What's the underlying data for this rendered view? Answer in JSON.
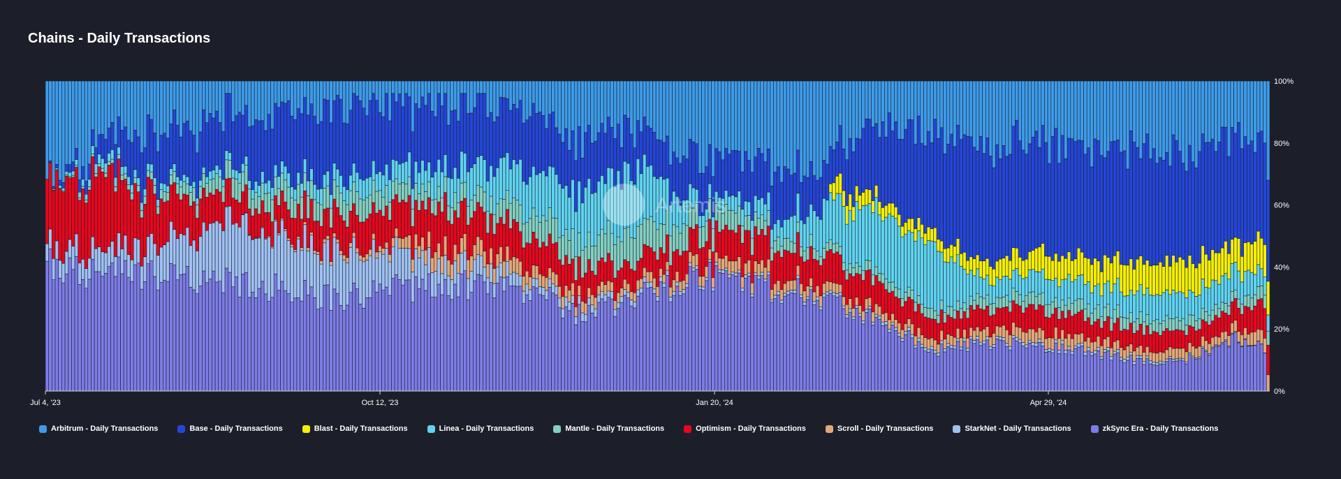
{
  "title": "Chains - Daily Transactions",
  "watermark": "Artemis",
  "colors": {
    "background": "#1c1f2a",
    "Arbitrum": "#3d9be9",
    "Base": "#2446d8",
    "Blast": "#f5ef00",
    "Linea": "#5fd3f0",
    "Mantle": "#83cfc0",
    "Optimism": "#e8071c",
    "Scroll": "#e3a878",
    "StarkNet": "#9fc1f2",
    "zkSync Era": "#7d7ce6"
  },
  "chart_data": {
    "type": "bar",
    "stacked": "percent",
    "title": "Chains - Daily Transactions",
    "x_range": [
      "2023-07-04",
      "2024-07-12"
    ],
    "x_ticks": [
      "Jul 4, '23",
      "Oct 12, '23",
      "Jan 20, '24",
      "Apr 29, '24"
    ],
    "y_ticks": [
      "0%",
      "20%",
      "40%",
      "60%",
      "80%",
      "100%"
    ],
    "ylim": [
      0,
      100
    ],
    "y_axis_side": "right",
    "legend_position": "bottom",
    "note": "Approximate key points of each series' share (%) of daily transactions; dates are ISO, shares are read from the stacked 100% chart",
    "series": [
      {
        "name": "zkSync Era - Daily Transactions",
        "color_key": "zkSync Era",
        "points": [
          [
            "2023-07-04",
            40
          ],
          [
            "2023-08-01",
            37
          ],
          [
            "2023-09-01",
            35
          ],
          [
            "2023-10-01",
            30
          ],
          [
            "2023-11-01",
            35
          ],
          [
            "2023-12-01",
            32
          ],
          [
            "2023-12-15",
            24
          ],
          [
            "2024-01-01",
            30
          ],
          [
            "2024-01-20",
            37
          ],
          [
            "2024-02-15",
            33
          ],
          [
            "2024-03-01",
            28
          ],
          [
            "2024-03-15",
            22
          ],
          [
            "2024-04-01",
            13
          ],
          [
            "2024-04-15",
            15
          ],
          [
            "2024-05-01",
            15
          ],
          [
            "2024-05-15",
            13
          ],
          [
            "2024-06-01",
            10
          ],
          [
            "2024-06-15",
            9
          ],
          [
            "2024-07-01",
            17
          ],
          [
            "2024-07-11",
            14
          ],
          [
            "2024-07-12",
            0
          ]
        ]
      },
      {
        "name": "StarkNet - Daily Transactions",
        "color_key": "StarkNet",
        "points": [
          [
            "2023-07-04",
            6
          ],
          [
            "2023-08-01",
            8
          ],
          [
            "2023-09-01",
            20
          ],
          [
            "2023-10-01",
            15
          ],
          [
            "2023-11-01",
            8
          ],
          [
            "2023-12-01",
            3
          ],
          [
            "2024-01-01",
            2
          ],
          [
            "2024-01-20",
            1
          ],
          [
            "2024-02-15",
            1
          ],
          [
            "2024-03-15",
            1
          ],
          [
            "2024-04-01",
            1
          ],
          [
            "2024-05-01",
            1
          ],
          [
            "2024-06-01",
            1
          ],
          [
            "2024-07-12",
            0
          ]
        ]
      },
      {
        "name": "Scroll - Daily Transactions",
        "color_key": "Scroll",
        "points": [
          [
            "2023-07-04",
            0
          ],
          [
            "2023-09-01",
            0
          ],
          [
            "2023-10-15",
            2
          ],
          [
            "2023-11-01",
            6
          ],
          [
            "2023-12-01",
            4
          ],
          [
            "2024-01-01",
            3
          ],
          [
            "2024-02-01",
            4
          ],
          [
            "2024-03-01",
            3
          ],
          [
            "2024-04-01",
            3
          ],
          [
            "2024-05-01",
            4
          ],
          [
            "2024-06-01",
            3
          ],
          [
            "2024-07-01",
            3
          ],
          [
            "2024-07-12",
            5
          ]
        ]
      },
      {
        "name": "Optimism - Daily Transactions",
        "color_key": "Optimism",
        "points": [
          [
            "2023-07-04",
            20
          ],
          [
            "2023-07-20",
            25
          ],
          [
            "2023-08-01",
            18
          ],
          [
            "2023-08-15",
            12
          ],
          [
            "2023-09-01",
            8
          ],
          [
            "2023-10-01",
            10
          ],
          [
            "2023-11-01",
            13
          ],
          [
            "2023-12-01",
            10
          ],
          [
            "2024-01-01",
            7
          ],
          [
            "2024-01-20",
            9
          ],
          [
            "2024-02-15",
            10
          ],
          [
            "2024-03-01",
            9
          ],
          [
            "2024-03-15",
            9
          ],
          [
            "2024-04-01",
            6
          ],
          [
            "2024-05-01",
            7
          ],
          [
            "2024-06-01",
            6
          ],
          [
            "2024-07-01",
            6
          ],
          [
            "2024-07-12",
            10
          ]
        ]
      },
      {
        "name": "Mantle - Daily Transactions",
        "color_key": "Mantle",
        "points": [
          [
            "2023-07-04",
            0
          ],
          [
            "2023-08-01",
            2
          ],
          [
            "2023-09-01",
            6
          ],
          [
            "2023-10-01",
            7
          ],
          [
            "2023-11-01",
            5
          ],
          [
            "2023-12-01",
            8
          ],
          [
            "2024-01-01",
            10
          ],
          [
            "2024-01-20",
            7
          ],
          [
            "2024-02-15",
            4
          ],
          [
            "2024-03-01",
            3
          ],
          [
            "2024-04-01",
            3
          ],
          [
            "2024-05-01",
            4
          ],
          [
            "2024-06-01",
            4
          ],
          [
            "2024-07-01",
            3
          ],
          [
            "2024-07-12",
            4
          ]
        ]
      },
      {
        "name": "Linea - Daily Transactions",
        "color_key": "Linea",
        "points": [
          [
            "2023-07-04",
            0
          ],
          [
            "2023-07-20",
            3
          ],
          [
            "2023-08-15",
            2
          ],
          [
            "2023-09-01",
            3
          ],
          [
            "2023-10-01",
            5
          ],
          [
            "2023-11-01",
            8
          ],
          [
            "2023-12-01",
            14
          ],
          [
            "2024-01-01",
            20
          ],
          [
            "2024-01-20",
            4
          ],
          [
            "2024-02-15",
            6
          ],
          [
            "2024-03-01",
            16
          ],
          [
            "2024-03-15",
            20
          ],
          [
            "2024-04-01",
            20
          ],
          [
            "2024-04-15",
            6
          ],
          [
            "2024-05-01",
            7
          ],
          [
            "2024-06-01",
            8
          ],
          [
            "2024-07-01",
            9
          ],
          [
            "2024-07-12",
            6
          ]
        ]
      },
      {
        "name": "Blast - Daily Transactions",
        "color_key": "Blast",
        "points": [
          [
            "2023-07-04",
            0
          ],
          [
            "2024-02-28",
            0
          ],
          [
            "2024-03-01",
            6
          ],
          [
            "2024-03-15",
            4
          ],
          [
            "2024-04-01",
            4
          ],
          [
            "2024-05-01",
            7
          ],
          [
            "2024-06-01",
            9
          ],
          [
            "2024-06-15",
            10
          ],
          [
            "2024-07-01",
            9
          ],
          [
            "2024-07-12",
            10
          ]
        ]
      },
      {
        "name": "Base - Daily Transactions",
        "color_key": "Base",
        "points": [
          [
            "2023-07-04",
            0
          ],
          [
            "2023-07-20",
            6
          ],
          [
            "2023-08-01",
            15
          ],
          [
            "2023-09-01",
            18
          ],
          [
            "2023-10-01",
            23
          ],
          [
            "2023-11-01",
            20
          ],
          [
            "2023-12-01",
            18
          ],
          [
            "2024-01-01",
            13
          ],
          [
            "2024-01-20",
            13
          ],
          [
            "2024-02-15",
            15
          ],
          [
            "2024-03-01",
            12
          ],
          [
            "2024-03-15",
            24
          ],
          [
            "2024-04-01",
            32
          ],
          [
            "2024-04-15",
            38
          ],
          [
            "2024-05-01",
            35
          ],
          [
            "2024-06-01",
            36
          ],
          [
            "2024-07-01",
            34
          ],
          [
            "2024-07-12",
            30
          ]
        ]
      },
      {
        "name": "Arbitrum - Daily Transactions",
        "color_key": "Arbitrum",
        "fill_remainder": true
      }
    ]
  },
  "legend": [
    {
      "label": "Arbitrum - Daily Transactions",
      "color_key": "Arbitrum"
    },
    {
      "label": "Base - Daily Transactions",
      "color_key": "Base"
    },
    {
      "label": "Blast - Daily Transactions",
      "color_key": "Blast"
    },
    {
      "label": "Linea - Daily Transactions",
      "color_key": "Linea"
    },
    {
      "label": "Mantle - Daily Transactions",
      "color_key": "Mantle"
    },
    {
      "label": "Optimism - Daily Transactions",
      "color_key": "Optimism"
    },
    {
      "label": "Scroll - Daily Transactions",
      "color_key": "Scroll"
    },
    {
      "label": "StarkNet - Daily Transactions",
      "color_key": "StarkNet"
    },
    {
      "label": "zkSync Era - Daily Transactions",
      "color_key": "zkSync Era"
    }
  ]
}
